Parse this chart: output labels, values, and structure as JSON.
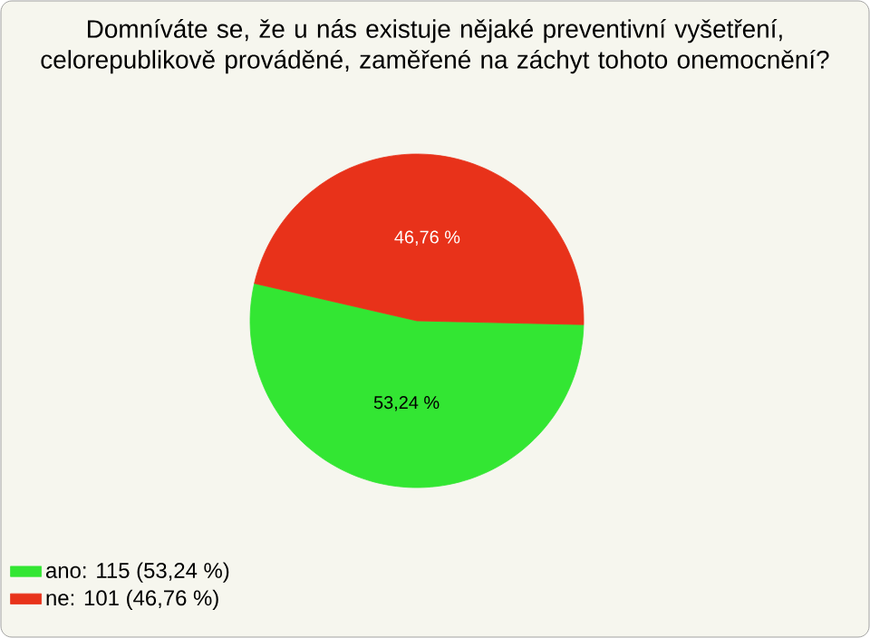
{
  "chart_data": {
    "type": "pie",
    "title": "Domníváte se, že u nás existuje nějaké preventivní vyšetření, celorepublikově prováděné, zaměřené na záchyt tohoto onemocnění?",
    "categories": [
      "ano: 115 (53,24 %)",
      "ne: 101 (46,76 %)"
    ],
    "values": [
      53.24,
      46.76
    ],
    "colors": [
      "#33e633",
      "#e8321a"
    ],
    "value_labels": [
      "53,24 %",
      "46,76 %"
    ],
    "legend": "bottom left"
  }
}
